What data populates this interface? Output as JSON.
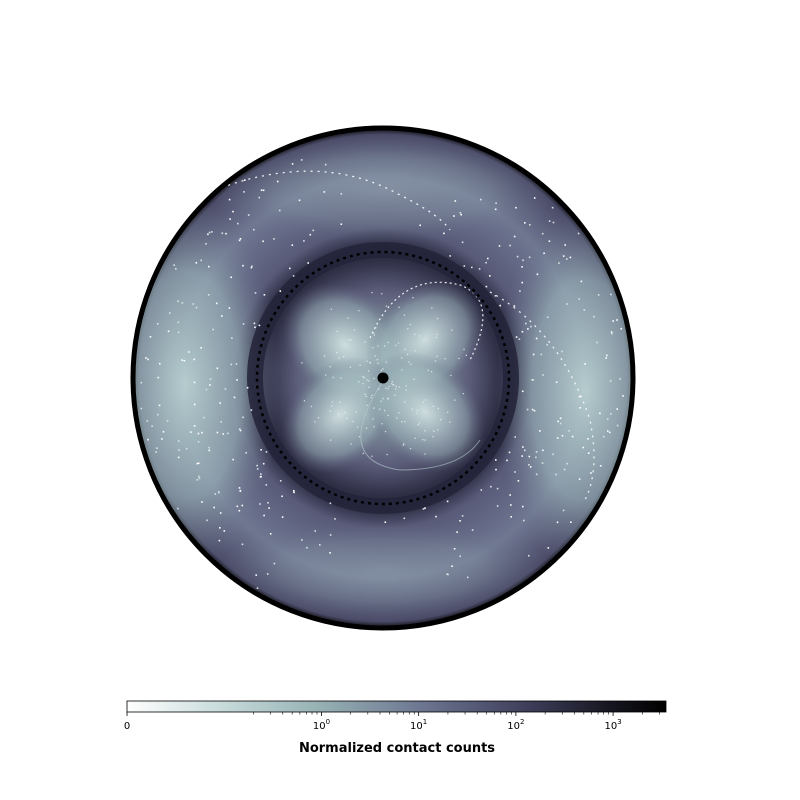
{
  "chart_data": {
    "type": "heatmap",
    "projection": "polar-disc",
    "description_of_pattern": "Circular contact density map with dark outer rim, dark inner ring, bright four-lobed central rosette and bright lateral lobes",
    "colormap": "bone_r",
    "colors": {
      "outer_rim": "#000000",
      "dark_band": "#3a3a55",
      "mid": "#5f607e",
      "light": "#a8c2c4",
      "highlight": "#ffffff",
      "center_dot": "#000000"
    },
    "colorbar": {
      "scale": "symlog",
      "min": 0,
      "max": 3500,
      "linthresh": 0.1,
      "ticks": [
        {
          "value": 0,
          "label": "0",
          "base": "0",
          "exp": ""
        },
        {
          "value": 1,
          "label": "10^0",
          "base": "10",
          "exp": "0"
        },
        {
          "value": 10,
          "label": "10^1",
          "base": "10",
          "exp": "1"
        },
        {
          "value": 100,
          "label": "10^2",
          "base": "10",
          "exp": "2"
        },
        {
          "value": 1000,
          "label": "10^3",
          "base": "10",
          "exp": "3"
        }
      ],
      "title": "Normalized contact counts"
    }
  }
}
